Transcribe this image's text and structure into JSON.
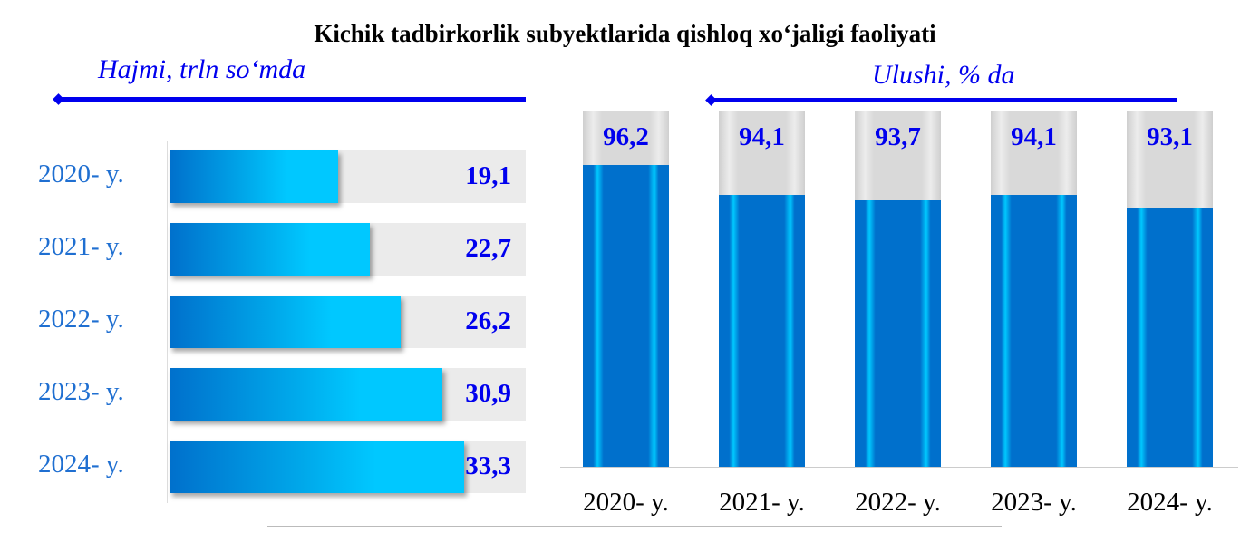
{
  "chart_data": [
    {
      "type": "bar",
      "orientation": "horizontal",
      "title": "Kichik tadbirkorlik subyektlarida qishloq xo‘jaligi faoliyati",
      "subtitle": "Hajmi, trln so‘mda",
      "categories": [
        "2020- y.",
        "2021- y.",
        "2022- y.",
        "2023- y.",
        "2024- y."
      ],
      "values": [
        19.1,
        22.7,
        26.2,
        30.9,
        33.3
      ],
      "labels": [
        "19,1",
        "22,7",
        "26,2",
        "30,9",
        "33,3"
      ],
      "xlim": [
        0,
        40
      ]
    },
    {
      "type": "bar",
      "orientation": "vertical",
      "subtitle": "Ulushi, % da",
      "categories": [
        "2020- y.",
        "2021- y.",
        "2022- y.",
        "2023- y.",
        "2024- y."
      ],
      "values": [
        96.2,
        94.1,
        93.7,
        94.1,
        93.1
      ],
      "labels": [
        "96,2",
        "94,1",
        "93,7",
        "94,1",
        "93,1"
      ],
      "ylim": [
        75,
        100
      ]
    }
  ],
  "colors": {
    "accent": "#0000ee",
    "bar": "#0070cc",
    "bar_light": "#00c8ff",
    "track": "#ebebeb"
  }
}
